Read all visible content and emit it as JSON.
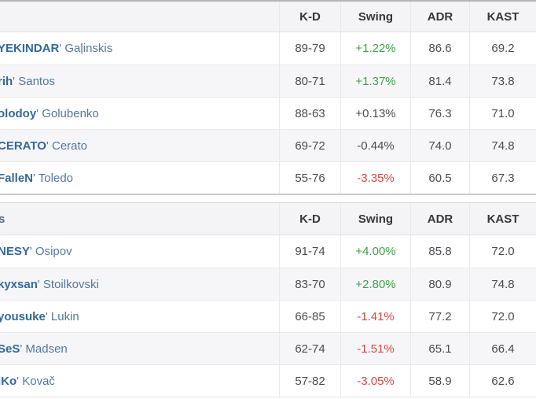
{
  "columns": [
    "K-D",
    "Swing",
    "ADR",
    "KAST"
  ],
  "name_separator": "'",
  "colors": {
    "positive_swing": "#3fa24a",
    "negative_swing": "#d8483f",
    "neutral_number": "#4c4c50",
    "nick_link": "#34689c",
    "surname_link": "#54779f"
  },
  "tables": [
    {
      "team_fragment": "",
      "rows": [
        {
          "nick": "YEKINDAR",
          "surname": "Gaļinskis",
          "kd": "89-79",
          "swing": "+1.22%",
          "adr": "86.6",
          "kast": "69.2"
        },
        {
          "nick": "rih",
          "surname": "Santos",
          "kd": "80-71",
          "swing": "+1.37%",
          "adr": "81.4",
          "kast": "73.8"
        },
        {
          "nick": "olodoy",
          "surname": "Golubenko",
          "kd": "88-63",
          "swing": "+0.13%",
          "adr": "76.3",
          "kast": "71.0"
        },
        {
          "nick": "CERATO",
          "surname": "Cerato",
          "kd": "69-72",
          "swing": "-0.44%",
          "adr": "74.0",
          "kast": "74.8"
        },
        {
          "nick": "FalleN",
          "surname": "Toledo",
          "kd": "55-76",
          "swing": "-3.35%",
          "adr": "60.5",
          "kast": "67.3"
        }
      ]
    },
    {
      "team_fragment": "s",
      "rows": [
        {
          "nick": "NESY",
          "surname": "Osipov",
          "kd": "91-74",
          "swing": "+4.00%",
          "adr": "85.8",
          "kast": "72.0"
        },
        {
          "nick": "kyxsan",
          "surname": "Stoilkovski",
          "kd": "83-70",
          "swing": "+2.80%",
          "adr": "80.9",
          "kast": "74.8"
        },
        {
          "nick": "yousuke",
          "surname": "Lukin",
          "kd": "66-85",
          "swing": "-1.41%",
          "adr": "77.2",
          "kast": "72.0"
        },
        {
          "nick": "SeS",
          "surname": "Madsen",
          "kd": "62-74",
          "swing": "-1.51%",
          "adr": "65.1",
          "kast": "66.4"
        },
        {
          "nick": "iKo",
          "surname": "Kovač",
          "kd": "57-82",
          "swing": "-3.05%",
          "adr": "58.9",
          "kast": "62.6"
        }
      ]
    }
  ]
}
